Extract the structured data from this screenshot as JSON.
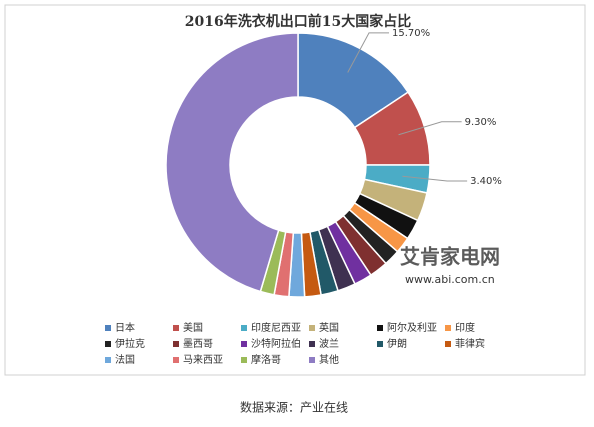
{
  "chart_data": {
    "type": "donut",
    "title": "2016年洗衣机出口前15大国家占比",
    "categories": [
      "日本",
      "美国",
      "印度尼西亚",
      "英国",
      "阿尔及利亚",
      "印度",
      "伊拉克",
      "墨西哥",
      "沙特阿拉伯",
      "波兰",
      "伊朗",
      "菲律宾",
      "法国",
      "马来西亚",
      "摩洛哥",
      "其他"
    ],
    "values": [
      15.7,
      9.3,
      3.4,
      3.5,
      2.5,
      2.0,
      2.0,
      2.3,
      2.2,
      2.2,
      2.1,
      2.0,
      1.9,
      1.8,
      1.7,
      45.4
    ],
    "value_labels": [
      "15.70%",
      "9.30%",
      "3.40%",
      null,
      null,
      null,
      null,
      null,
      null,
      null,
      null,
      null,
      null,
      null,
      null,
      null
    ],
    "colors": [
      "#4f81bd",
      "#c0504d",
      "#4bacc6",
      "#c4b27a",
      "#111111",
      "#f79646",
      "#222222",
      "#7f3030",
      "#7030a0",
      "#3f3151",
      "#215968",
      "#c55a11",
      "#6fa8dc",
      "#e07070",
      "#9bbb59",
      "#8e7cc3"
    ],
    "legend": "bottom",
    "watermark": "艾肯家电网",
    "watermark_url": "www.abi.com.cn",
    "source": "数据来源：产业在线"
  }
}
